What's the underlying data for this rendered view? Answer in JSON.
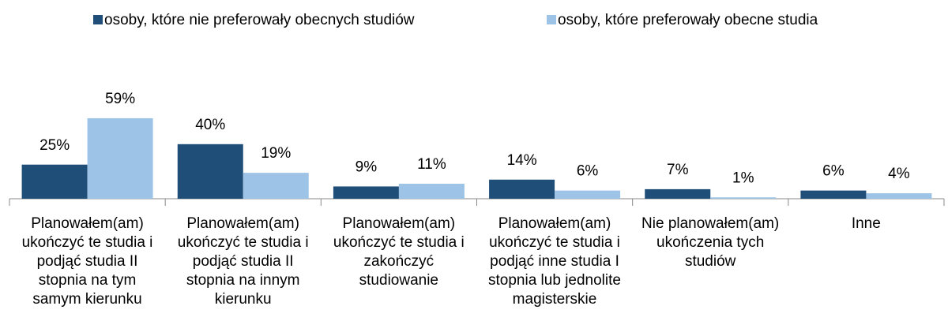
{
  "chart_data": {
    "type": "bar",
    "categories": [
      "Planowałem(am)\nukończyć te studia i\npodjąć studia II\nstopnia na tym\nsamym kierunku",
      "Planowałem(am)\nukończyć te studia i\npodjąć studia II\nstopnia na innym\nkierunku",
      "Planowałem(am)\nukończyć te studia i\nzakończyć\nstudiowanie",
      "Planowałem(am)\nukończyć te studia i\npodjąć inne studia I\nstopnia lub jednolite\nmagisterskie",
      "Nie planowałem(am)\nukończenia tych\nstudiów",
      "Inne"
    ],
    "series": [
      {
        "name": "osoby, które nie preferowały obecnych studiów",
        "color": "#1f4e79",
        "values": [
          25,
          40,
          9,
          14,
          7,
          6
        ],
        "value_labels": [
          "25%",
          "40%",
          "9%",
          "14%",
          "7%",
          "6%"
        ]
      },
      {
        "name": "osoby, które preferowały obecne studia",
        "color": "#9dc3e6",
        "values": [
          59,
          19,
          11,
          6,
          1,
          4
        ],
        "value_labels": [
          "59%",
          "19%",
          "11%",
          "6%",
          "1%",
          "4%"
        ]
      }
    ],
    "legend": "top"
  }
}
